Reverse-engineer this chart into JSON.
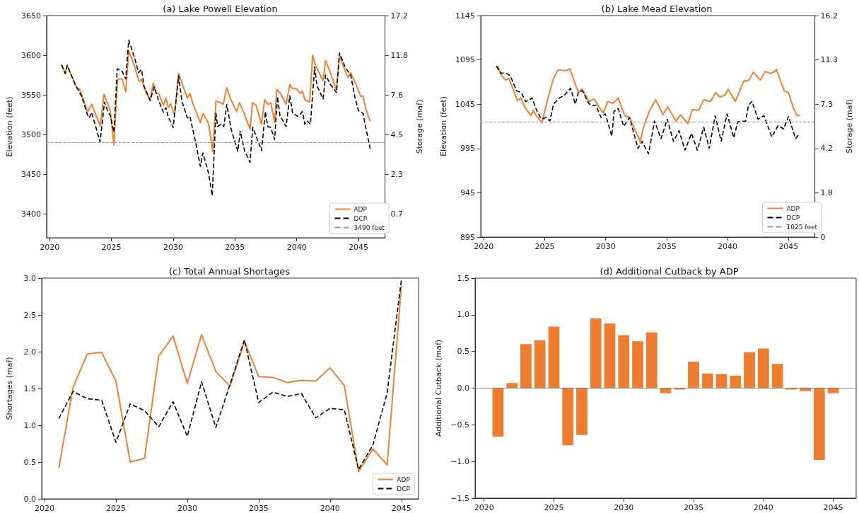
{
  "chart_data": [
    {
      "type": "line",
      "title": "(a) Lake Powell Elevation",
      "ylabel": "Elevation (feet)",
      "y2label": "Storage (maf)",
      "xlim": [
        2019.75,
        2047.15
      ],
      "xticks": [
        2020,
        2025,
        2030,
        2035,
        2040,
        2045
      ],
      "ylim": [
        3370,
        3650
      ],
      "yticks": [
        3400,
        3450,
        3500,
        3550,
        3600,
        3650
      ],
      "y2_categories": [
        "17.2",
        "11.8",
        "7.6",
        "4.5",
        "2.3",
        "0.7"
      ],
      "legend": "bottom right",
      "ref_lines": [
        {
          "axis": "y",
          "value": 3490,
          "label": "3490 feet",
          "color": "#999999",
          "line_style": "dashed"
        }
      ],
      "series": [
        {
          "name": "ADP",
          "color": "#ee7f33",
          "line_style": "solid",
          "x": [
            2020.97,
            2021.26,
            2021.42,
            2022.1,
            2022.26,
            2022.4,
            2022.7,
            2023.06,
            2023.4,
            2024.1,
            2024.4,
            2024.9,
            2025.2,
            2025.5,
            2025.86,
            2026.16,
            2026.4,
            2026.85,
            2027.24,
            2027.44,
            2027.64,
            2028.13,
            2028.39,
            2028.62,
            2028.82,
            2029.21,
            2029.41,
            2029.6,
            2029.8,
            2030.1,
            2030.44,
            2030.8,
            2031.15,
            2031.35,
            2031.62,
            2032.2,
            2032.4,
            2032.87,
            2033.2,
            2033.46,
            2033.75,
            2034.05,
            2034.34,
            2034.64,
            2035.13,
            2035.37,
            2035.73,
            2036.22,
            2036.42,
            2036.71,
            2037.15,
            2037.4,
            2037.66,
            2037.9,
            2038.21,
            2038.39,
            2038.68,
            2039.14,
            2039.44,
            2039.67,
            2039.97,
            2040.26,
            2040.46,
            2040.66,
            2041.05,
            2041.29,
            2041.55,
            2042.14,
            2042.34,
            2042.73,
            2043.22,
            2043.46,
            2043.92,
            2044.17,
            2044.37,
            2044.8,
            2045.2,
            2045.36,
            2045.6,
            2045.95
          ],
          "values": [
            3588,
            3577,
            3587,
            3562,
            3558,
            3558,
            3546,
            3529,
            3538,
            3511,
            3551,
            3530,
            3487,
            3570,
            3570,
            3554,
            3606,
            3587,
            3567,
            3570,
            3559,
            3543,
            3565,
            3552,
            3552,
            3537,
            3546,
            3534,
            3539,
            3524,
            3577,
            3561,
            3546,
            3552,
            3538,
            3515,
            3527,
            3514,
            3479,
            3542,
            3541,
            3538,
            3559,
            3545,
            3529,
            3540,
            3527,
            3507,
            3540,
            3537,
            3513,
            3544,
            3538,
            3540,
            3515,
            3557,
            3552,
            3538,
            3563,
            3558,
            3558,
            3552,
            3555,
            3544,
            3541,
            3600,
            3586,
            3568,
            3593,
            3578,
            3556,
            3600,
            3580,
            3572,
            3578,
            3563,
            3548,
            3549,
            3532,
            3517
          ]
        },
        {
          "name": "DCP",
          "color": "#000000",
          "line_style": "dashed",
          "x": [
            2020.97,
            2021.26,
            2021.42,
            2022.1,
            2022.6,
            2023.06,
            2023.2,
            2023.4,
            2024.08,
            2024.44,
            2024.68,
            2024.91,
            2025.2,
            2025.47,
            2025.86,
            2026.16,
            2026.4,
            2026.85,
            2027.2,
            2027.44,
            2027.64,
            2028.13,
            2028.46,
            2028.82,
            2029.21,
            2029.41,
            2029.6,
            2030.0,
            2030.44,
            2030.7,
            2031.15,
            2031.35,
            2031.82,
            2032.2,
            2032.4,
            2032.87,
            2033.16,
            2033.46,
            2033.6,
            2033.85,
            2034.1,
            2034.34,
            2034.7,
            2035.23,
            2035.43,
            2035.77,
            2036.22,
            2036.44,
            2036.71,
            2037.15,
            2037.46,
            2037.66,
            2037.9,
            2038.21,
            2038.45,
            2038.64,
            2039.14,
            2039.44,
            2039.67,
            2040.06,
            2040.26,
            2040.46,
            2040.66,
            2040.86,
            2041.11,
            2041.45,
            2041.65,
            2042.14,
            2042.34,
            2042.73,
            2043.22,
            2043.46,
            2043.92,
            2044.37,
            2044.7,
            2045.0,
            2045.36,
            2045.6,
            2045.95
          ],
          "values": [
            3588,
            3577,
            3587,
            3562,
            3548,
            3525,
            3521,
            3528,
            3491,
            3541,
            3530,
            3524,
            3503,
            3583,
            3580,
            3570,
            3619,
            3598,
            3578,
            3582,
            3561,
            3543,
            3560,
            3543,
            3528,
            3534,
            3522,
            3509,
            3574,
            3542,
            3521,
            3523,
            3490,
            3460,
            3477,
            3451,
            3423,
            3527,
            3510,
            3513,
            3510,
            3538,
            3506,
            3479,
            3504,
            3480,
            3465,
            3509,
            3498,
            3480,
            3529,
            3510,
            3509,
            3494,
            3548,
            3524,
            3510,
            3549,
            3527,
            3523,
            3525,
            3529,
            3513,
            3517,
            3513,
            3585,
            3561,
            3545,
            3575,
            3563,
            3553,
            3603,
            3585,
            3575,
            3548,
            3530,
            3527,
            3508,
            3482
          ]
        }
      ]
    },
    {
      "type": "line",
      "title": "(b) Lake Mead Elevation",
      "ylabel": "Elevation (feet)",
      "y2label": "Storage (maf)",
      "xlim": [
        2019.75,
        2047.17
      ],
      "xticks": [
        2020,
        2025,
        2030,
        2035,
        2040,
        2045
      ],
      "ylim": [
        895,
        1145
      ],
      "yticks": [
        895,
        945,
        995,
        1045,
        1095,
        1145
      ],
      "y2_categories": [
        "16.2",
        "11.3",
        "7.3",
        "4.2",
        "1.8",
        "0"
      ],
      "legend": "bottom right",
      "ref_lines": [
        {
          "axis": "y",
          "value": 1025,
          "label": "1025 feet",
          "color": "#999999",
          "line_style": "dashed"
        }
      ],
      "series": [
        {
          "name": "ADP",
          "color": "#ee7f33",
          "line_style": "solid",
          "x": [
            2021.03,
            2021.19,
            2021.42,
            2021.78,
            2022.05,
            2022.3,
            2022.75,
            2023.04,
            2023.34,
            2023.86,
            2024.06,
            2024.31,
            2024.78,
            2025.03,
            2025.37,
            2025.72,
            2026.1,
            2026.5,
            2026.79,
            2027.05,
            2027.47,
            2027.77,
            2028.06,
            2028.65,
            2029.07,
            2029.43,
            2029.82,
            2030.17,
            2030.6,
            2031.03,
            2031.57,
            2031.96,
            2032.84,
            2033.13,
            2033.62,
            2034.11,
            2034.7,
            2035.09,
            2035.77,
            2036.16,
            2036.74,
            2037.13,
            2037.62,
            2038.05,
            2038.6,
            2039.03,
            2039.38,
            2039.77,
            2040.06,
            2040.65,
            2041.33,
            2041.76,
            2042.11,
            2042.7,
            2043.09,
            2043.48,
            2043.77,
            2044.02,
            2044.65,
            2045.0,
            2045.43,
            2045.72,
            2045.94
          ],
          "values": [
            1088,
            1087,
            1078,
            1072,
            1074,
            1066,
            1049,
            1052,
            1042,
            1032,
            1038,
            1032,
            1024,
            1039,
            1057,
            1074,
            1084,
            1083,
            1083,
            1085,
            1069,
            1058,
            1062,
            1048,
            1051,
            1042,
            1035,
            1048,
            1046,
            1052,
            1032,
            1030,
            1003,
            1020,
            1038,
            1050,
            1033,
            1042,
            1026,
            1033,
            1023,
            1039,
            1038,
            1050,
            1048,
            1058,
            1053,
            1055,
            1062,
            1048,
            1071,
            1072,
            1081,
            1072,
            1082,
            1080,
            1081,
            1084,
            1060,
            1058,
            1040,
            1032,
            1032
          ]
        },
        {
          "name": "DCP",
          "color": "#000000",
          "line_style": "dashed",
          "x": [
            2021.03,
            2021.39,
            2021.82,
            2022.17,
            2022.7,
            2023.08,
            2023.42,
            2023.67,
            2023.96,
            2024.39,
            2024.74,
            2025.13,
            2025.42,
            2025.72,
            2026.2,
            2026.6,
            2027.12,
            2027.51,
            2027.77,
            2028.1,
            2028.61,
            2028.88,
            2029.19,
            2029.62,
            2029.97,
            2030.5,
            2030.69,
            2031.03,
            2031.48,
            2031.96,
            2032.65,
            2032.98,
            2033.52,
            2034.01,
            2034.54,
            2035.05,
            2035.57,
            2036.02,
            2036.51,
            2037.04,
            2037.53,
            2038.05,
            2038.5,
            2038.99,
            2039.48,
            2039.97,
            2040.51,
            2040.84,
            2041.49,
            2041.72,
            2042.01,
            2042.5,
            2042.99,
            2043.63,
            2044.16,
            2044.61,
            2045.0,
            2045.59,
            2045.92
          ],
          "values": [
            1088,
            1080,
            1080,
            1077,
            1060,
            1058,
            1048,
            1049,
            1052,
            1036,
            1028,
            1030,
            1026,
            1045,
            1052,
            1055,
            1063,
            1045,
            1059,
            1060,
            1046,
            1043,
            1044,
            1030,
            1034,
            1009,
            1037,
            1040,
            1020,
            1030,
            995,
            1003,
            989,
            1026,
            1006,
            1028,
            1003,
            1015,
            993,
            1012,
            993,
            1019,
            995,
            1032,
            1003,
            1034,
            1007,
            1025,
            1026,
            1044,
            1048,
            1028,
            1032,
            1008,
            1021,
            1017,
            1031,
            1006,
            1012
          ]
        }
      ]
    },
    {
      "type": "line",
      "title": "(c) Total Annual Shortages",
      "ylabel": "Shortages (maf)",
      "x": [
        2021,
        2022,
        2023,
        2024,
        2025,
        2026,
        2027,
        2028,
        2029,
        2030,
        2031,
        2032,
        2033,
        2034,
        2035,
        2036,
        2037,
        2038,
        2039,
        2040,
        2041,
        2042,
        2043,
        2044,
        2045
      ],
      "xlim": [
        2019.8,
        2046.2
      ],
      "xticks": [
        2020,
        2025,
        2030,
        2035,
        2040,
        2045
      ],
      "ylim": [
        0,
        3
      ],
      "yticks": [
        {
          "value": 0,
          "label": "0.0"
        },
        0.5,
        {
          "value": 1,
          "label": "1.0"
        },
        1.5,
        {
          "value": 2,
          "label": "2.0"
        },
        2.5,
        {
          "value": 3,
          "label": "3.0"
        }
      ],
      "legend": "bottom right",
      "series": [
        {
          "name": "ADP",
          "color": "#ee7f33",
          "line_style": "solid",
          "values": [
            0.42,
            1.52,
            1.97,
            1.99,
            1.6,
            0.5,
            0.55,
            1.94,
            2.21,
            1.57,
            2.23,
            1.73,
            1.53,
            2.14,
            1.66,
            1.65,
            1.58,
            1.61,
            1.6,
            1.78,
            1.54,
            0.37,
            0.68,
            0.46,
            2.9
          ]
        },
        {
          "name": "DCP",
          "color": "#000000",
          "line_style": "dashed",
          "values": [
            1.09,
            1.46,
            1.36,
            1.34,
            0.77,
            1.29,
            1.2,
            0.98,
            1.32,
            0.85,
            1.59,
            0.97,
            1.56,
            2.16,
            1.31,
            1.45,
            1.39,
            1.43,
            1.1,
            1.23,
            1.21,
            0.4,
            0.73,
            1.44,
            2.98
          ]
        }
      ]
    },
    {
      "type": "bar",
      "title": "(d) Additional Cutback by ADP",
      "ylabel": "Additional Cutback (maf)",
      "x": [
        2021,
        2022,
        2023,
        2024,
        2025,
        2026,
        2027,
        2028,
        2029,
        2030,
        2031,
        2032,
        2033,
        2034,
        2035,
        2036,
        2037,
        2038,
        2039,
        2040,
        2041,
        2042,
        2043,
        2044,
        2045
      ],
      "xlim": [
        2019.36,
        2046.64
      ],
      "xticks": [
        2020,
        2025,
        2030,
        2035,
        2040,
        2045
      ],
      "ylim": [
        -1.5,
        1.5
      ],
      "yticks": [
        {
          "value": -1.5,
          "label": "−1.5"
        },
        {
          "value": -1,
          "label": "−1.0"
        },
        {
          "value": -0.5,
          "label": "−0.5"
        },
        {
          "value": 0,
          "label": "0.0"
        },
        0.5,
        {
          "value": 1,
          "label": "1.0"
        },
        1.5
      ],
      "ref_lines": [
        {
          "axis": "y",
          "value": 0,
          "color": "#808080",
          "line_style": "solid"
        }
      ],
      "series": [
        {
          "color": "#ed7d31",
          "values": [
            -0.66,
            0.07,
            0.6,
            0.65,
            0.84,
            -0.78,
            -0.64,
            0.95,
            0.88,
            0.72,
            0.64,
            0.76,
            -0.07,
            -0.02,
            0.36,
            0.2,
            0.19,
            0.17,
            0.49,
            0.54,
            0.33,
            -0.02,
            -0.04,
            -0.98,
            -0.07
          ]
        }
      ]
    }
  ]
}
